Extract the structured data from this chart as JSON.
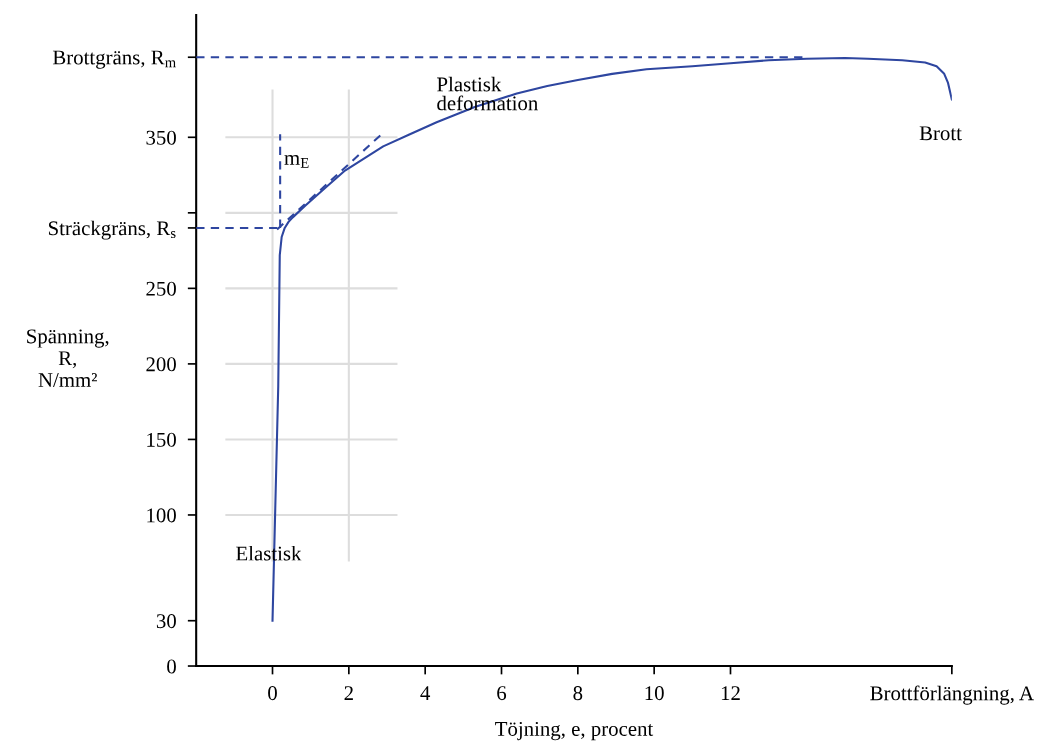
{
  "chart_data": {
    "type": "line",
    "xlabel": "Töjning, e, procent",
    "ylabel": "Spänning,\nR,\nN/mm²",
    "xlim": [
      -2,
      17.8
    ],
    "ylim": [
      0,
      431
    ],
    "xticks": [
      0,
      2,
      4,
      6,
      8,
      10,
      12,
      {
        "value": 17.8,
        "label": "Brottförlängning, A"
      }
    ],
    "yticks": [
      0,
      30,
      100,
      150,
      200,
      250,
      {
        "value": 290,
        "label": "Sträckgräns, R$_{s}$"
      },
      {
        "value": 300,
        "label": null
      },
      350,
      {
        "value": 403,
        "label": "Brottgräns, R$_{m}$"
      }
    ],
    "grid": true,
    "legend": false,
    "marker": "none",
    "series": [
      {
        "color": "#2e46a0",
        "line_style": "solid",
        "x": [
          0,
          0.15,
          0.19,
          0.24,
          0.32,
          0.42,
          0.53,
          0.87,
          1.4,
          1.9,
          2.9,
          3.6,
          4.3,
          5.3,
          6.4,
          7.2,
          8,
          8.9,
          9.8,
          11,
          12,
          13,
          14,
          15,
          15.6,
          16.5,
          17.1,
          17.4,
          17.6,
          17.7,
          17.8
        ],
        "values": [
          30,
          185,
          272,
          284,
          290,
          294,
          297,
          305,
          317,
          328,
          344,
          352,
          360,
          370,
          379,
          384,
          388,
          392,
          395,
          397,
          399,
          401,
          402,
          402.5,
          402,
          401,
          399.5,
          397,
          392,
          386,
          375
        ]
      },
      {
        "color": "#2e46a0",
        "line_style": "dashed",
        "x": [
          -2,
          0.15
        ],
        "values": [
          290,
          290
        ]
      },
      {
        "color": "#2e46a0",
        "line_style": "dashed",
        "x": [
          -2,
          14
        ],
        "values": [
          403,
          403
        ]
      },
      {
        "color": "#2e46a0",
        "line_style": "dashed",
        "x": [
          0.2,
          0.2
        ],
        "values": [
          290,
          352
        ]
      },
      {
        "color": "#2e46a0",
        "line_style": "dashed",
        "x": [
          0.12,
          2.9
        ],
        "values": [
          289,
          353
        ]
      }
    ],
    "annotations": [
      "Plastisk\ndeformation",
      {
        "text": "m$_{E}$",
        "x": 0.3,
        "y": 335
      },
      "Elastisk",
      "Brott"
    ]
  }
}
